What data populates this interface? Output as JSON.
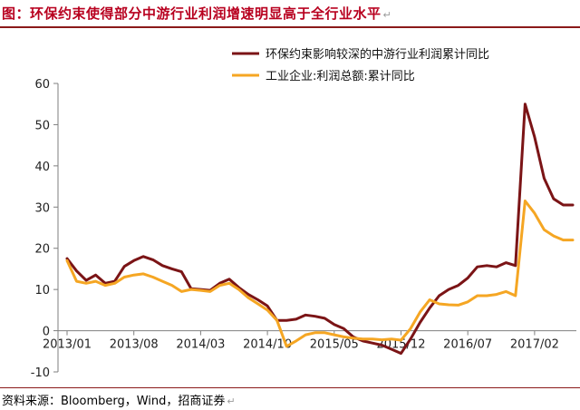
{
  "title": "图：环保约束使得部分中游行业利润增速明显高于全行业水平",
  "title_mark": "↵",
  "source": "资料来源：Bloomberg，Wind，招商证券",
  "source_mark": "↵",
  "chart_data": {
    "type": "line",
    "title": "图：环保约束使得部分中游行业利润增速明显高于全行业水平",
    "xlabel": "",
    "ylabel": "",
    "ylim": [
      -10,
      60
    ],
    "yticks": [
      -10,
      0,
      10,
      20,
      30,
      40,
      50,
      60
    ],
    "xtick_labels": [
      "2013/01",
      "2013/08",
      "2014/03",
      "2014/10",
      "2015/05",
      "2015/12",
      "2016/07",
      "2017/02"
    ],
    "x": [
      "2013/01",
      "2013/02",
      "2013/03",
      "2013/04",
      "2013/05",
      "2013/06",
      "2013/07",
      "2013/08",
      "2013/09",
      "2013/10",
      "2013/11",
      "2013/12",
      "2014/01",
      "2014/02",
      "2014/03",
      "2014/04",
      "2014/05",
      "2014/06",
      "2014/07",
      "2014/08",
      "2014/09",
      "2014/10",
      "2014/11",
      "2014/12",
      "2015/01",
      "2015/02",
      "2015/03",
      "2015/04",
      "2015/05",
      "2015/06",
      "2015/07",
      "2015/08",
      "2015/09",
      "2015/10",
      "2015/11",
      "2015/12",
      "2016/01",
      "2016/02",
      "2016/03",
      "2016/04",
      "2016/05",
      "2016/06",
      "2016/07",
      "2016/08",
      "2016/09",
      "2016/10",
      "2016/11",
      "2016/12",
      "2017/01",
      "2017/02",
      "2017/03",
      "2017/04",
      "2017/05",
      "2017/06"
    ],
    "grid": false,
    "legend_position": "top-right",
    "series": [
      {
        "name": "环保约束影响较深的中游行业利润累计同比",
        "color": "#7b1416",
        "values": [
          17.5,
          14.5,
          12.2,
          13.5,
          11.5,
          12.0,
          15.6,
          17.0,
          18.0,
          17.2,
          15.8,
          15.0,
          14.3,
          10.2,
          10.0,
          9.8,
          11.5,
          12.5,
          10.5,
          8.8,
          7.5,
          6.0,
          2.5,
          2.5,
          2.8,
          3.8,
          3.5,
          3.0,
          1.5,
          0.5,
          -1.5,
          -2.5,
          -3.0,
          -3.5,
          -4.5,
          -5.5,
          -2.0,
          2.0,
          5.5,
          8.5,
          10.0,
          11.0,
          12.8,
          15.5,
          15.8,
          15.5,
          16.5,
          15.8,
          55.0,
          47.0,
          37.0,
          32.0,
          30.5,
          30.5
        ],
        "line_width": 3
      },
      {
        "name": "工业企业:利润总额:累计同比",
        "color": "#f5a623",
        "values": [
          17.0,
          12.0,
          11.5,
          12.0,
          11.0,
          11.5,
          13.0,
          13.5,
          13.8,
          13.0,
          12.0,
          11.0,
          9.5,
          10.0,
          9.8,
          9.5,
          11.0,
          11.5,
          10.0,
          8.0,
          6.5,
          5.0,
          2.5,
          -3.8,
          -2.5,
          -1.0,
          -0.5,
          -0.5,
          -1.0,
          -1.5,
          -1.8,
          -2.0,
          -2.0,
          -2.2,
          -2.0,
          -2.3,
          0.5,
          4.5,
          7.5,
          6.5,
          6.3,
          6.2,
          7.0,
          8.5,
          8.5,
          8.8,
          9.5,
          8.5,
          31.5,
          28.5,
          24.5,
          23.0,
          22.0,
          22.0
        ],
        "line_width": 3
      }
    ]
  }
}
